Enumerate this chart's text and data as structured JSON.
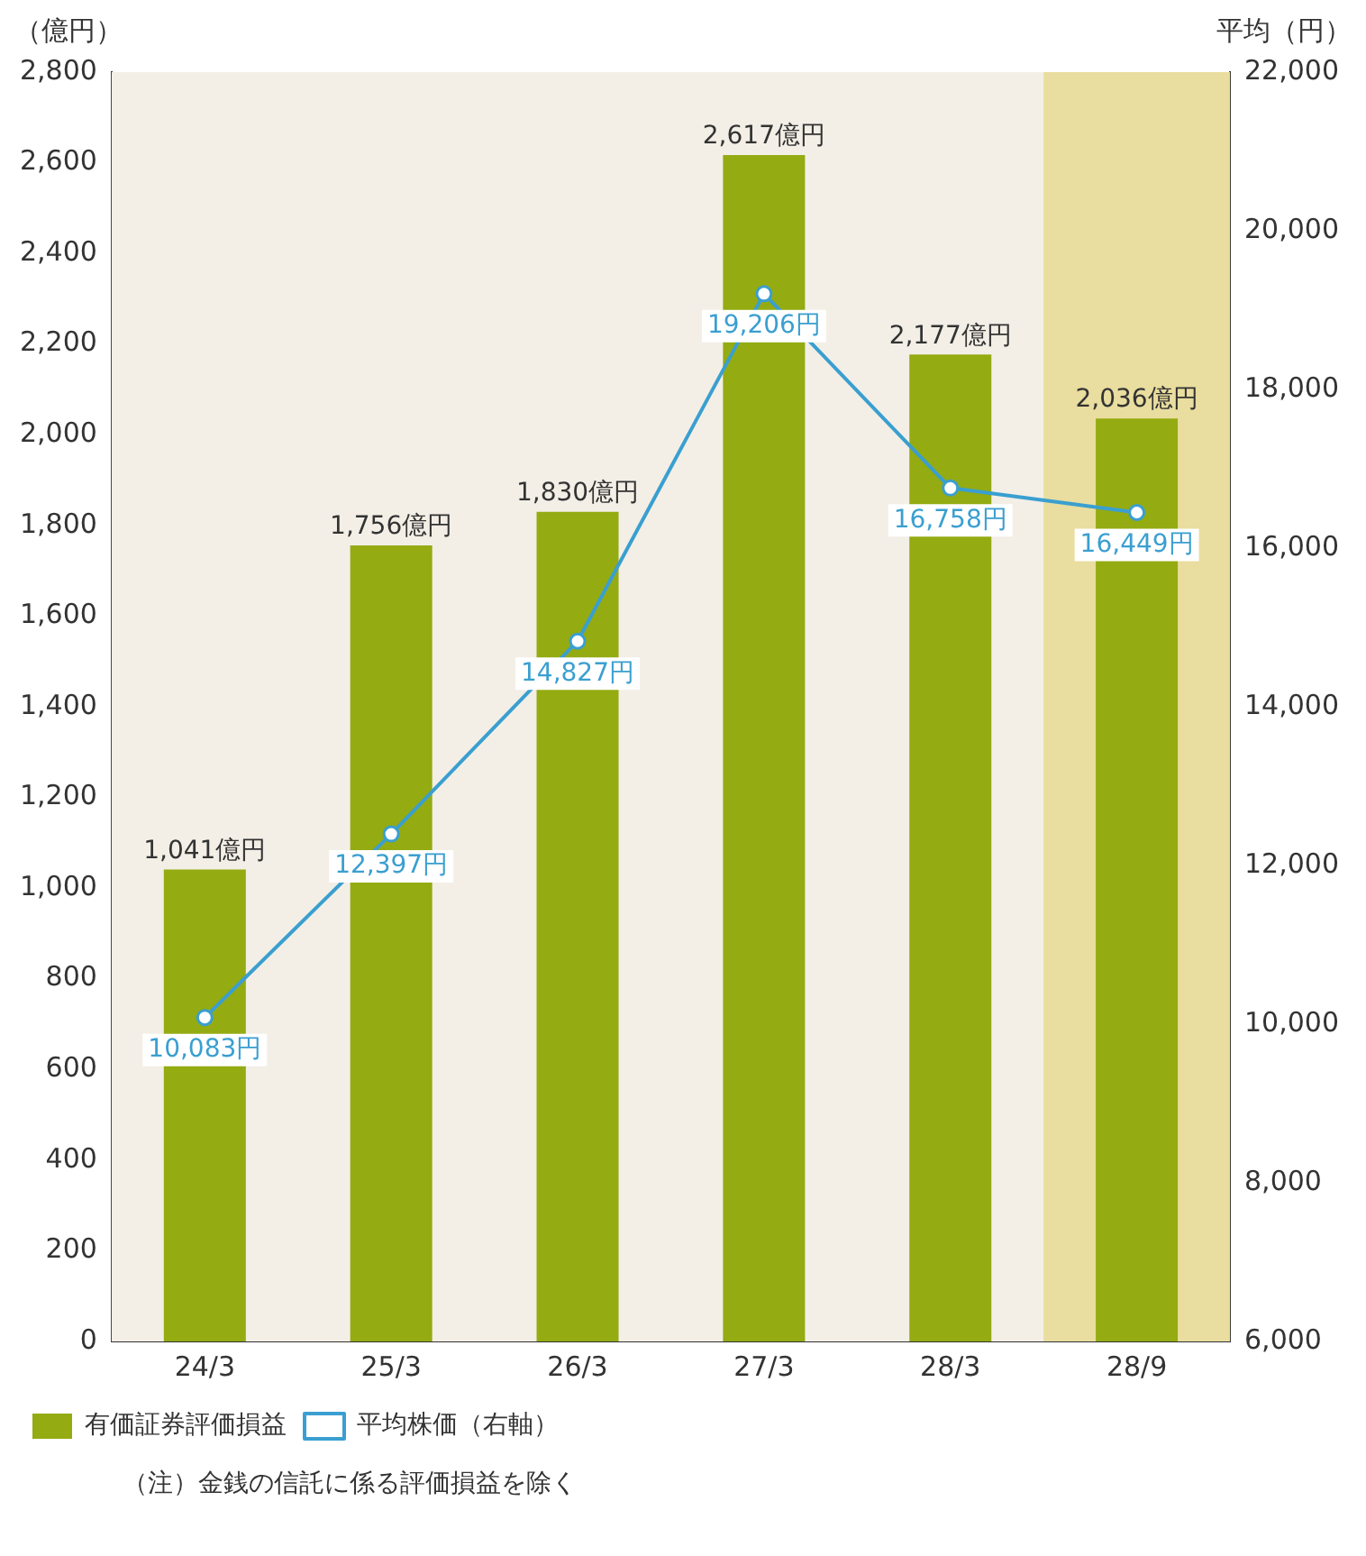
{
  "chart_data": {
    "type": "bar",
    "ylabel": "（億円）",
    "y2label": "平均（円）",
    "categories": [
      "24/3",
      "25/3",
      "26/3",
      "27/3",
      "28/3",
      "28/9"
    ],
    "series": [
      {
        "name": "有価証券評価損益",
        "color": "#94ab12",
        "values": [
          1041,
          1756,
          1830,
          2617,
          2177,
          2036
        ],
        "value_labels": [
          "1,041億円",
          "1,756億円",
          "1,830億円",
          "2,617億円",
          "2,177億円",
          "2,036億円"
        ]
      },
      {
        "name": "平均株価（右軸）",
        "type": "line",
        "axis": "y2",
        "color": "#3a9fd0",
        "marker": "circle",
        "values": [
          10083,
          12397,
          14827,
          19206,
          16758,
          16449
        ],
        "value_labels": [
          "10,083円",
          "12,397円",
          "14,827円",
          "19,206円",
          "16,758円",
          "16,449円"
        ]
      }
    ],
    "ylim": [
      0,
      2800
    ],
    "yticks": [
      0,
      200,
      400,
      600,
      800,
      {
        "value": 1000,
        "label": "1,000"
      },
      {
        "value": 1200,
        "label": "1,200"
      },
      {
        "value": 1400,
        "label": "1,400"
      },
      {
        "value": 1600,
        "label": "1,600"
      },
      {
        "value": 1800,
        "label": "1,800"
      },
      {
        "value": 2000,
        "label": "2,000"
      },
      {
        "value": 2200,
        "label": "2,200"
      },
      {
        "value": 2400,
        "label": "2,400"
      },
      {
        "value": 2600,
        "label": "2,600"
      },
      {
        "value": 2800,
        "label": "2,800"
      }
    ],
    "y2lim": [
      6000,
      22000
    ],
    "y2ticks": [
      {
        "value": 6000,
        "label": "6,000"
      },
      {
        "value": 8000,
        "label": "8,000"
      },
      {
        "value": 10000,
        "label": "10,000"
      },
      {
        "value": 12000,
        "label": "12,000"
      },
      {
        "value": 14000,
        "label": "14,000"
      },
      {
        "value": 16000,
        "label": "16,000"
      },
      {
        "value": 18000,
        "label": "18,000"
      },
      {
        "value": 20000,
        "label": "20,000"
      },
      {
        "value": 22000,
        "label": "22,000"
      }
    ],
    "bands": [
      {
        "axis": "x",
        "from": "28/9",
        "to": "28/9",
        "color": "#e9dd9f"
      }
    ],
    "grid": false,
    "legend": "bottom",
    "annotations": [
      "（注）金銭の信託に係る評価損益を除く"
    ]
  }
}
